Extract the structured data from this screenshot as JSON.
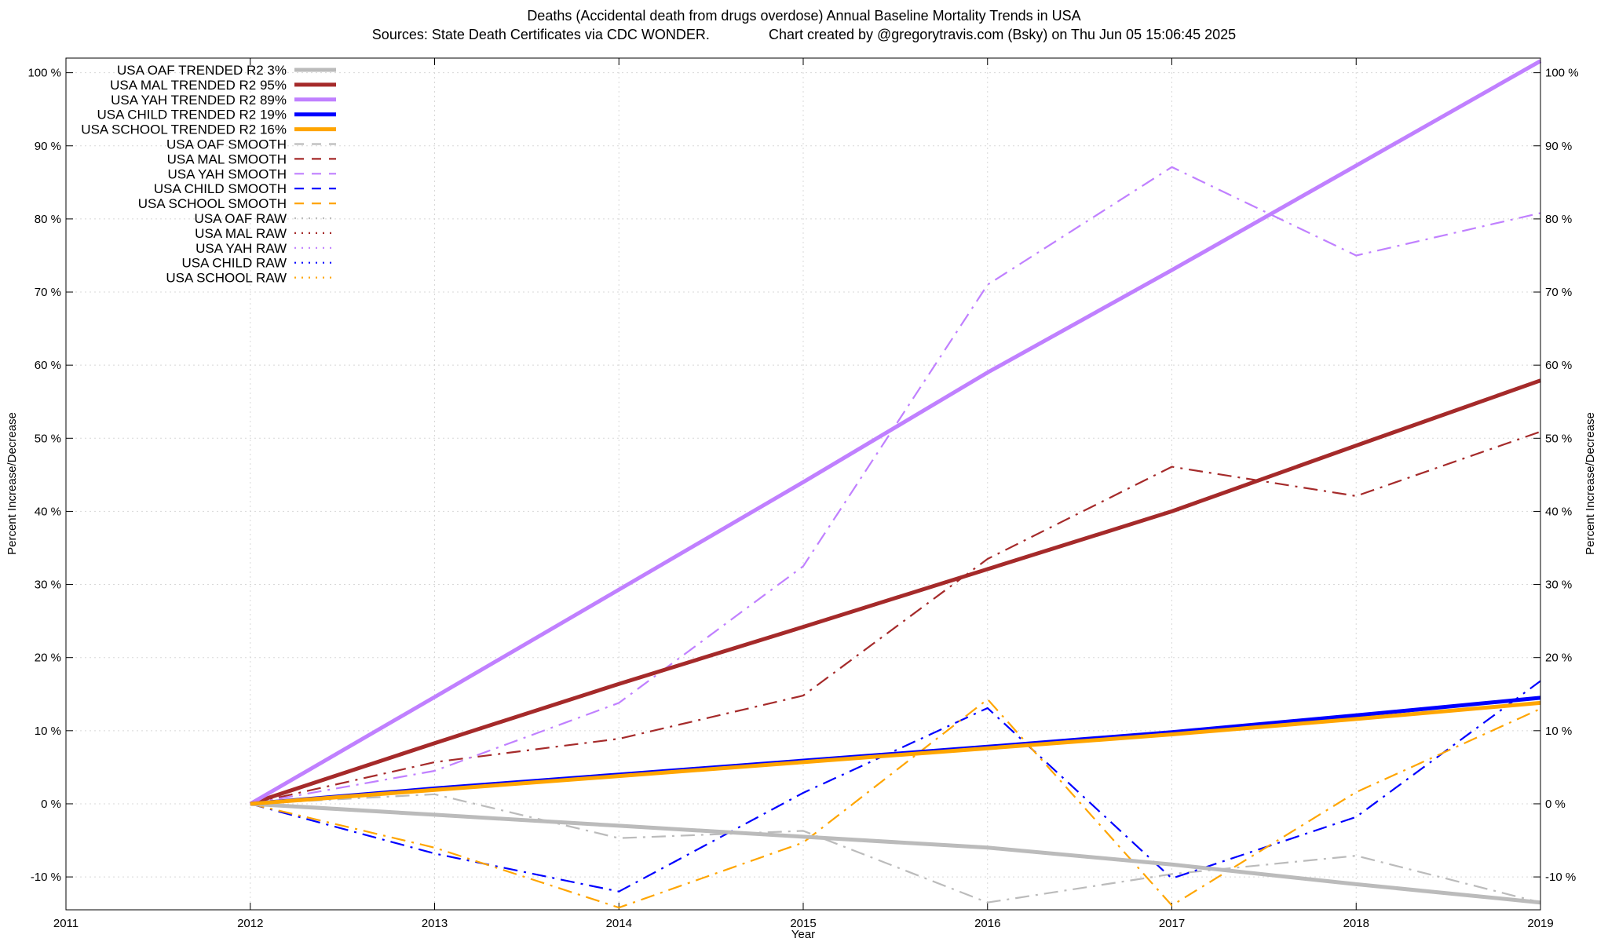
{
  "chart_data": {
    "type": "line",
    "title": "Deaths (Accidental death from drugs overdose)  Annual Baseline Mortality Trends in USA",
    "subtitle": "Sources: State Death Certificates via CDC WONDER.               Chart created by @gregorytravis.com (Bsky) on Thu Jun 05 15:06:45 2025",
    "xlabel": "Year",
    "ylabel": "Percent Increase/Decrease",
    "y2label": "Percent Increase/Decrease",
    "xlim": [
      2011,
      2019
    ],
    "ylim": [
      -14.5,
      102
    ],
    "x_ticks": [
      2011,
      2012,
      2013,
      2014,
      2015,
      2016,
      2017,
      2018,
      2019
    ],
    "x_tick_labels": [
      "2011",
      "2012",
      "2013",
      "2014",
      "2015",
      "2016",
      "2017",
      "2018",
      "2019"
    ],
    "y_ticks": [
      -10,
      0,
      10,
      20,
      30,
      40,
      50,
      60,
      70,
      80,
      90,
      100
    ],
    "y_tick_labels": [
      "-10 %",
      "0 %",
      "10 %",
      "20 %",
      "30 %",
      "40 %",
      "50 %",
      "60 %",
      "70 %",
      "80 %",
      "90 %",
      "100 %"
    ],
    "grid": true,
    "legend_position": "top-left",
    "series": [
      {
        "name": "USA OAF TRENDED R2  3%",
        "style": "trend",
        "color": "#bbbbbb",
        "x": [
          2012,
          2013,
          2014,
          2015,
          2016,
          2017,
          2018,
          2019
        ],
        "y": [
          0,
          -1.5,
          -3.0,
          -4.5,
          -6.0,
          -8.3,
          -11.0,
          -13.5
        ]
      },
      {
        "name": "USA MAL TRENDED R2  95%",
        "style": "trend",
        "color": "#a52a2a",
        "x": [
          2012,
          2013,
          2014,
          2015,
          2016,
          2017,
          2018,
          2019
        ],
        "y": [
          0,
          8.3,
          16.4,
          24.2,
          32.1,
          40.0,
          49.0,
          57.9
        ]
      },
      {
        "name": "USA YAH TRENDED R2  89%",
        "style": "trend",
        "color": "#c080ff",
        "x": [
          2012,
          2013,
          2014,
          2015,
          2016,
          2017,
          2018,
          2019
        ],
        "y": [
          0,
          14.6,
          29.3,
          44.0,
          59.0,
          73.0,
          87.3,
          101.6
        ]
      },
      {
        "name": "USA CHILD TRENDED R2  19%",
        "style": "trend",
        "color": "#0000ff",
        "x": [
          2012,
          2013,
          2014,
          2015,
          2016,
          2017,
          2018,
          2019
        ],
        "y": [
          0,
          2.1,
          4.0,
          5.9,
          7.8,
          9.8,
          12.1,
          14.5
        ]
      },
      {
        "name": "USA SCHOOL TRENDED R2  16%",
        "style": "trend",
        "color": "#ffa500",
        "x": [
          2012,
          2013,
          2014,
          2015,
          2016,
          2017,
          2018,
          2019
        ],
        "y": [
          0,
          1.9,
          3.8,
          5.7,
          7.6,
          9.5,
          11.6,
          13.8
        ]
      },
      {
        "name": "USA OAF SMOOTH",
        "style": "smooth",
        "color": "#bbbbbb",
        "x": [
          2012,
          2013,
          2014,
          2015,
          2016,
          2017,
          2018,
          2019
        ],
        "y": [
          0,
          1.3,
          -4.7,
          -3.7,
          -13.5,
          -9.6,
          -7.1,
          -13.5
        ]
      },
      {
        "name": "USA MAL SMOOTH",
        "style": "smooth",
        "color": "#a52a2a",
        "x": [
          2012,
          2013,
          2014,
          2015,
          2016,
          2017,
          2018,
          2019
        ],
        "y": [
          0,
          5.7,
          8.9,
          14.8,
          33.5,
          46.1,
          42.1,
          50.9
        ]
      },
      {
        "name": "USA YAH SMOOTH",
        "style": "smooth",
        "color": "#c080ff",
        "x": [
          2012,
          2013,
          2014,
          2015,
          2016,
          2017,
          2018,
          2019
        ],
        "y": [
          0,
          4.5,
          13.8,
          32.5,
          71.0,
          87.1,
          75.0,
          80.8
        ]
      },
      {
        "name": "USA CHILD SMOOTH",
        "style": "smooth",
        "color": "#0000ff",
        "x": [
          2012,
          2013,
          2014,
          2015,
          2016,
          2017,
          2018,
          2019
        ],
        "y": [
          0,
          -6.8,
          -12.0,
          1.5,
          13.1,
          -10.2,
          -1.8,
          16.8
        ]
      },
      {
        "name": "USA SCHOOL SMOOTH",
        "style": "smooth",
        "color": "#ffa500",
        "x": [
          2012,
          2013,
          2014,
          2015,
          2016,
          2017,
          2018,
          2019
        ],
        "y": [
          0,
          -6.0,
          -14.2,
          -5.3,
          14.3,
          -13.9,
          1.6,
          13.0
        ]
      },
      {
        "name": "USA OAF RAW",
        "style": "raw",
        "color": "#bbbbbb",
        "x": [],
        "y": []
      },
      {
        "name": "USA MAL RAW",
        "style": "raw",
        "color": "#a52a2a",
        "x": [],
        "y": []
      },
      {
        "name": "USA YAH RAW",
        "style": "raw",
        "color": "#c080ff",
        "x": [],
        "y": []
      },
      {
        "name": "USA CHILD RAW",
        "style": "raw",
        "color": "#0000ff",
        "x": [],
        "y": []
      },
      {
        "name": "USA SCHOOL RAW",
        "style": "raw",
        "color": "#ffa500",
        "x": [],
        "y": []
      }
    ]
  }
}
